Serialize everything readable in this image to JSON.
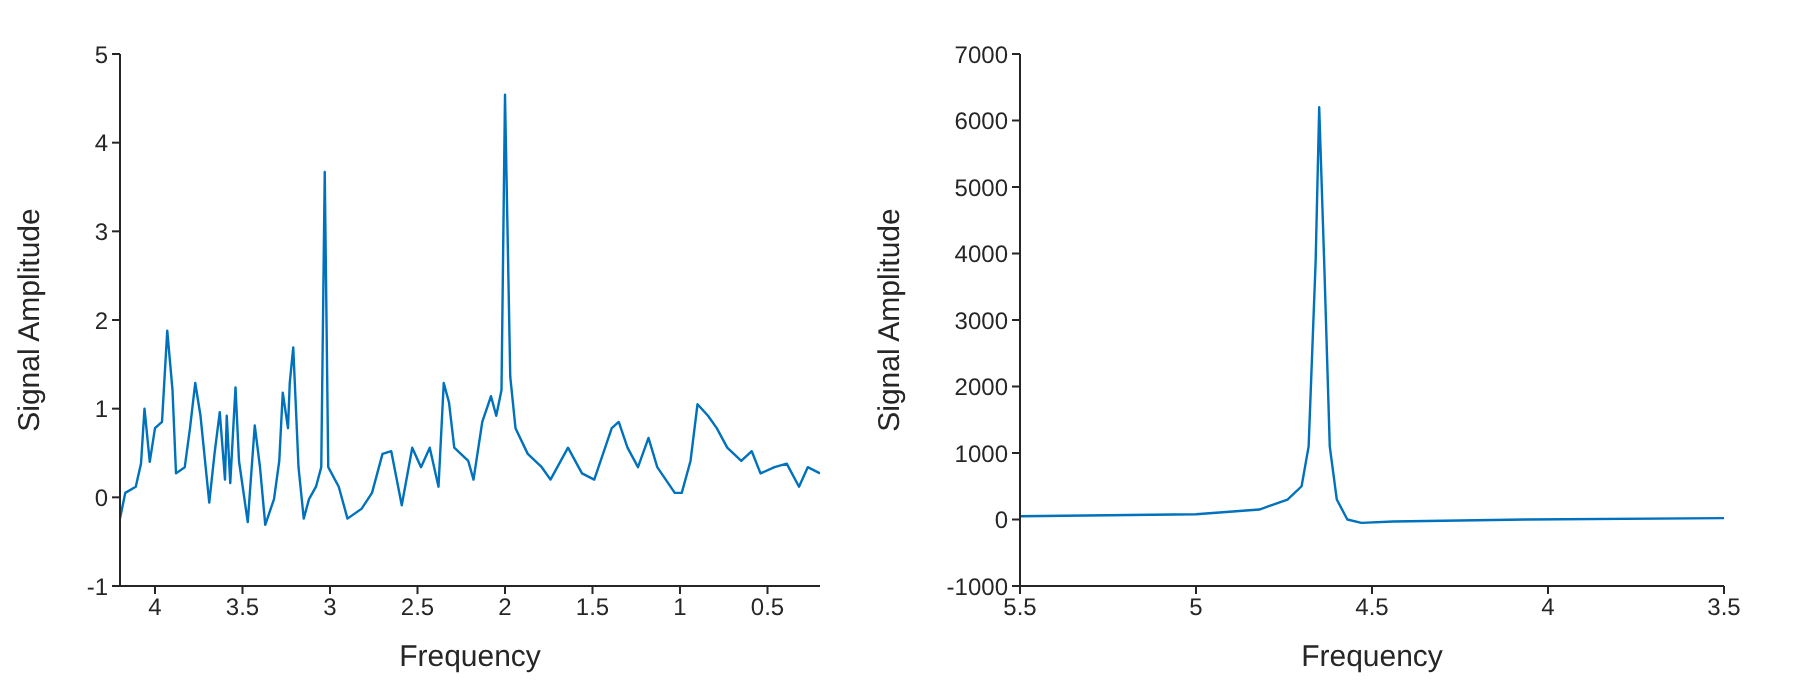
{
  "chart_data": [
    {
      "type": "line",
      "xlabel": "Frequency",
      "ylabel": "Signal Amplitude",
      "xlim": [
        4.2,
        0.2
      ],
      "xticks": [
        4,
        3.5,
        3,
        2.5,
        2,
        1.5,
        1,
        0.5
      ],
      "ylim": [
        -1,
        5
      ],
      "yticks": [
        -1,
        0,
        1,
        2,
        3,
        4,
        5
      ],
      "grid": false,
      "legend": false,
      "marker": "none",
      "x": [
        4.2,
        4.17,
        4.11,
        4.08,
        4.06,
        4.03,
        4.0,
        3.96,
        3.93,
        3.9,
        3.88,
        3.83,
        3.8,
        3.77,
        3.74,
        3.69,
        3.66,
        3.63,
        3.6,
        3.59,
        3.57,
        3.54,
        3.52,
        3.47,
        3.43,
        3.4,
        3.37,
        3.32,
        3.29,
        3.27,
        3.24,
        3.23,
        3.21,
        3.18,
        3.15,
        3.12,
        3.08,
        3.05,
        3.03,
        3.01,
        2.95,
        2.9,
        2.82,
        2.76,
        2.7,
        2.65,
        2.59,
        2.53,
        2.48,
        2.43,
        2.38,
        2.35,
        2.32,
        2.29,
        2.21,
        2.18,
        2.13,
        2.08,
        2.05,
        2.02,
        2.0,
        1.97,
        1.94,
        1.87,
        1.79,
        1.74,
        1.64,
        1.56,
        1.49,
        1.39,
        1.35,
        1.3,
        1.24,
        1.18,
        1.13,
        1.03,
        0.99,
        0.94,
        0.9,
        0.84,
        0.79,
        0.73,
        0.65,
        0.59,
        0.54,
        0.46,
        0.39,
        0.32,
        0.27,
        0.2
      ],
      "series": [
        {
          "color": "#0072bd",
          "values": [
            -0.24,
            0.05,
            0.12,
            0.38,
            1.0,
            0.4,
            0.78,
            0.85,
            1.88,
            1.21,
            0.27,
            0.34,
            0.78,
            1.29,
            0.92,
            -0.06,
            0.49,
            0.96,
            0.2,
            0.92,
            0.16,
            1.24,
            0.41,
            -0.28,
            0.81,
            0.34,
            -0.31,
            -0.02,
            0.41,
            1.18,
            0.78,
            1.29,
            1.69,
            0.34,
            -0.24,
            -0.02,
            0.12,
            0.34,
            3.67,
            0.34,
            0.12,
            -0.24,
            -0.13,
            0.05,
            0.49,
            0.52,
            -0.09,
            0.56,
            0.34,
            0.56,
            0.12,
            1.29,
            1.07,
            0.56,
            0.41,
            0.2,
            0.85,
            1.14,
            0.92,
            1.21,
            4.54,
            1.36,
            0.78,
            0.49,
            0.34,
            0.2,
            0.56,
            0.27,
            0.2,
            0.78,
            0.85,
            0.56,
            0.34,
            0.67,
            0.34,
            0.05,
            0.05,
            0.41,
            1.05,
            0.92,
            0.78,
            0.56,
            0.41,
            0.52,
            0.27,
            0.34,
            0.38,
            0.12,
            0.34,
            0.27
          ]
        }
      ]
    },
    {
      "type": "line",
      "xlabel": "Frequency",
      "ylabel": "Signal Amplitude",
      "xlim": [
        5.5,
        3.5
      ],
      "xticks": [
        5.5,
        5,
        4.5,
        4,
        3.5
      ],
      "ylim": [
        -1000,
        7000
      ],
      "yticks": [
        -1000,
        0,
        1000,
        2000,
        3000,
        4000,
        5000,
        6000,
        7000
      ],
      "grid": false,
      "legend": false,
      "marker": "none",
      "x": [
        5.5,
        5.0,
        4.82,
        4.74,
        4.7,
        4.68,
        4.66,
        4.65,
        4.636,
        4.62,
        4.6,
        4.57,
        4.53,
        4.44,
        4.06,
        3.5
      ],
      "series": [
        {
          "color": "#0072bd",
          "values": [
            50,
            80,
            150,
            300,
            500,
            1100,
            3900,
            6200,
            3900,
            1100,
            300,
            0,
            -50,
            -30,
            0,
            20
          ]
        }
      ]
    }
  ]
}
